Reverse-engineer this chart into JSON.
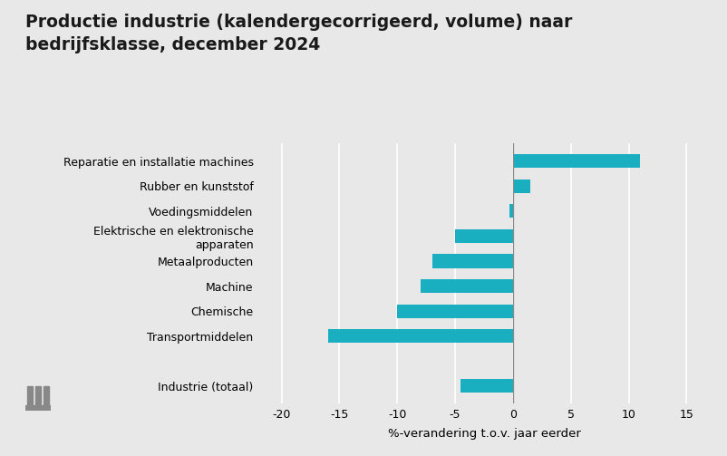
{
  "title": "Productie industrie (kalendergecorrigeerd, volume) naar\nbedrijfsklasse, december 2024",
  "categories": [
    "Industrie (totaal)",
    "",
    "Transportmiddelen",
    "Chemische",
    "Machine",
    "Metaalproducten",
    "Elektrische en elektronische\napparaten",
    "Voedingsmiddelen",
    "Rubber en kunststof",
    "Reparatie en installatie machines"
  ],
  "values": [
    -4.5,
    null,
    -16.0,
    -10.0,
    -8.0,
    -7.0,
    -5.0,
    -0.3,
    1.5,
    11.0
  ],
  "bar_color": "#1aafc0",
  "background_color": "#e8e8e8",
  "xlabel": "%-verandering t.o.v. jaar eerder",
  "xlim": [
    -22,
    17
  ],
  "xticks": [
    -20,
    -15,
    -10,
    -5,
    0,
    5,
    10,
    15
  ],
  "title_fontsize": 13.5,
  "axis_fontsize": 9.5,
  "tick_fontsize": 9.0
}
